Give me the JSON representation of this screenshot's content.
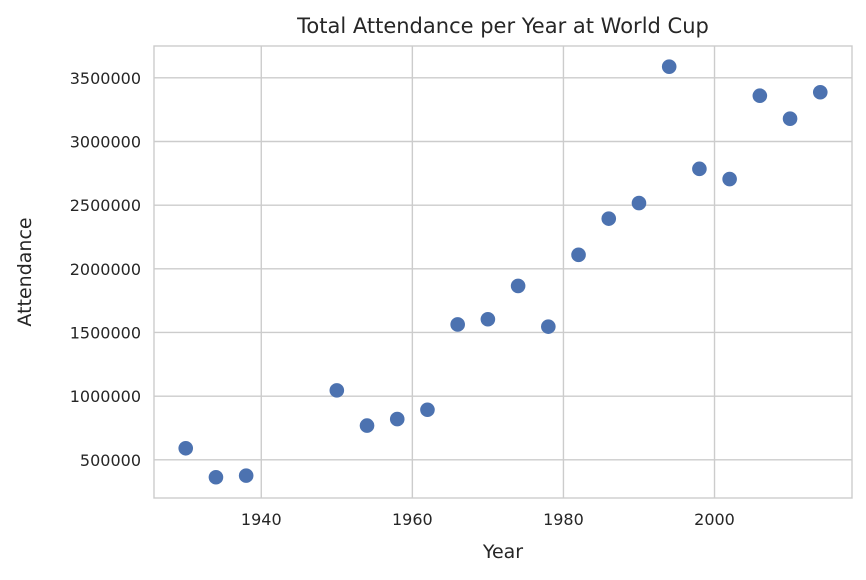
{
  "chart_data": {
    "type": "scatter",
    "title": "Total Attendance per Year at World Cup",
    "xlabel": "Year",
    "ylabel": "Attendance",
    "xlim": [
      1925.8,
      2018.2
    ],
    "ylim": [
      200000,
      3750000
    ],
    "xticks": [
      1940,
      1960,
      1980,
      2000
    ],
    "yticks": [
      500000,
      1000000,
      1500000,
      2000000,
      2500000,
      3000000,
      3500000
    ],
    "grid": true,
    "color": "#4c72b0",
    "points": [
      {
        "x": 1930,
        "y": 590549
      },
      {
        "x": 1934,
        "y": 363000
      },
      {
        "x": 1938,
        "y": 375700
      },
      {
        "x": 1950,
        "y": 1045246
      },
      {
        "x": 1954,
        "y": 768607
      },
      {
        "x": 1958,
        "y": 819810
      },
      {
        "x": 1962,
        "y": 893172
      },
      {
        "x": 1966,
        "y": 1563135
      },
      {
        "x": 1970,
        "y": 1603975
      },
      {
        "x": 1974,
        "y": 1865753
      },
      {
        "x": 1978,
        "y": 1545791
      },
      {
        "x": 1982,
        "y": 2109723
      },
      {
        "x": 1986,
        "y": 2394031
      },
      {
        "x": 1990,
        "y": 2516215
      },
      {
        "x": 1994,
        "y": 3587538
      },
      {
        "x": 1998,
        "y": 2785100
      },
      {
        "x": 2002,
        "y": 2705197
      },
      {
        "x": 2006,
        "y": 3359439
      },
      {
        "x": 2010,
        "y": 3178856
      },
      {
        "x": 2014,
        "y": 3386810
      }
    ]
  }
}
